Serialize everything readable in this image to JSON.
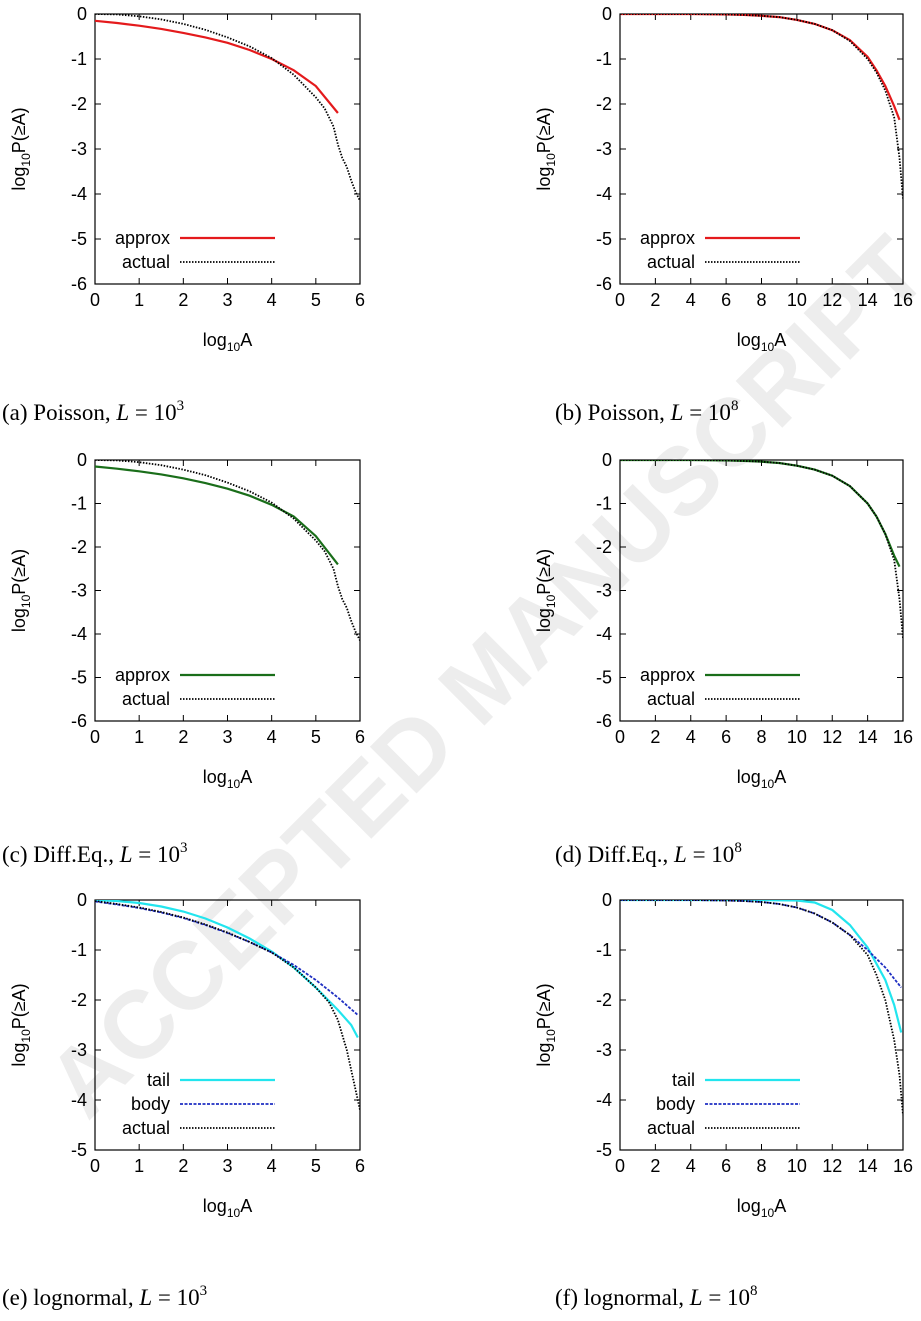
{
  "watermark": "ACCEPTED MANUSCRIPT",
  "chart_data": [
    {
      "type": "line",
      "caption": "(a) Poisson, L = 10^3",
      "xlabel": "log10A",
      "ylabel": "log10P(≥A)",
      "xlim": [
        0,
        6
      ],
      "ylim": [
        -6,
        0
      ],
      "xticks": [
        0,
        1,
        2,
        3,
        4,
        5,
        6
      ],
      "yticks": [
        0,
        -1,
        -2,
        -3,
        -4,
        -5,
        -6
      ],
      "legend_position": "bottom-left",
      "series": [
        {
          "name": "approx",
          "color": "#e41a1c",
          "dash": "solid",
          "x": [
            0,
            0.5,
            1,
            1.5,
            2,
            2.5,
            3,
            3.5,
            4,
            4.5,
            5,
            5.5
          ],
          "y": [
            -0.15,
            -0.2,
            -0.26,
            -0.33,
            -0.42,
            -0.52,
            -0.64,
            -0.8,
            -1.0,
            -1.25,
            -1.6,
            -2.2
          ]
        },
        {
          "name": "actual",
          "color": "#000000",
          "dash": "dotted",
          "x": [
            0,
            0.5,
            1,
            1.5,
            2,
            2.5,
            3,
            3.5,
            4,
            4.5,
            5,
            5.2,
            5.4,
            5.5,
            5.6,
            5.7,
            5.8,
            5.9,
            6
          ],
          "y": [
            0,
            -0.01,
            -0.05,
            -0.12,
            -0.22,
            -0.35,
            -0.52,
            -0.72,
            -0.98,
            -1.35,
            -1.85,
            -2.1,
            -2.5,
            -2.9,
            -3.2,
            -3.4,
            -3.7,
            -3.95,
            -4.15
          ]
        }
      ]
    },
    {
      "type": "line",
      "caption": "(b) Poisson, L = 10^8",
      "xlabel": "log10A",
      "ylabel": "log10P(≥A)",
      "xlim": [
        0,
        16
      ],
      "ylim": [
        -6,
        0
      ],
      "xticks": [
        0,
        2,
        4,
        6,
        8,
        10,
        12,
        14,
        16
      ],
      "yticks": [
        0,
        -1,
        -2,
        -3,
        -4,
        -5,
        -6
      ],
      "legend_position": "bottom-left",
      "series": [
        {
          "name": "approx",
          "color": "#e41a1c",
          "dash": "solid",
          "x": [
            0,
            2,
            4,
            6,
            7,
            8,
            9,
            10,
            11,
            12,
            13,
            14,
            14.5,
            15,
            15.5,
            15.8
          ],
          "y": [
            0,
            0,
            0,
            -0.01,
            -0.02,
            -0.04,
            -0.07,
            -0.13,
            -0.22,
            -0.36,
            -0.58,
            -0.95,
            -1.25,
            -1.6,
            -2.05,
            -2.35
          ]
        },
        {
          "name": "actual",
          "color": "#000000",
          "dash": "dotted",
          "x": [
            0,
            2,
            4,
            6,
            7,
            8,
            9,
            10,
            11,
            12,
            13,
            14,
            14.5,
            15,
            15.5,
            15.8,
            16
          ],
          "y": [
            0,
            0,
            0,
            -0.01,
            -0.02,
            -0.04,
            -0.07,
            -0.13,
            -0.22,
            -0.36,
            -0.6,
            -1.0,
            -1.3,
            -1.7,
            -2.3,
            -3.2,
            -4.1
          ]
        }
      ]
    },
    {
      "type": "line",
      "caption": "(c) Diff.Eq., L = 10^3",
      "xlabel": "log10A",
      "ylabel": "log10P(≥A)",
      "xlim": [
        0,
        6
      ],
      "ylim": [
        -6,
        0
      ],
      "xticks": [
        0,
        1,
        2,
        3,
        4,
        5,
        6
      ],
      "yticks": [
        0,
        -1,
        -2,
        -3,
        -4,
        -5,
        -6
      ],
      "legend_position": "bottom-left",
      "series": [
        {
          "name": "approx",
          "color": "#1a6e1a",
          "dash": "solid",
          "x": [
            0,
            0.5,
            1,
            1.5,
            2,
            2.5,
            3,
            3.5,
            4,
            4.5,
            5,
            5.5
          ],
          "y": [
            -0.15,
            -0.2,
            -0.26,
            -0.33,
            -0.42,
            -0.53,
            -0.66,
            -0.82,
            -1.03,
            -1.3,
            -1.75,
            -2.4
          ]
        },
        {
          "name": "actual",
          "color": "#000000",
          "dash": "dotted",
          "x": [
            0,
            0.5,
            1,
            1.5,
            2,
            2.5,
            3,
            3.5,
            4,
            4.5,
            5,
            5.2,
            5.4,
            5.5,
            5.6,
            5.7,
            5.8,
            5.9,
            6
          ],
          "y": [
            0,
            -0.01,
            -0.05,
            -0.12,
            -0.22,
            -0.35,
            -0.52,
            -0.72,
            -0.98,
            -1.35,
            -1.85,
            -2.1,
            -2.5,
            -2.9,
            -3.2,
            -3.4,
            -3.7,
            -3.95,
            -4.15
          ]
        }
      ]
    },
    {
      "type": "line",
      "caption": "(d) Diff.Eq., L = 10^8",
      "xlabel": "log10A",
      "ylabel": "log10P(≥A)",
      "xlim": [
        0,
        16
      ],
      "ylim": [
        -6,
        0
      ],
      "xticks": [
        0,
        2,
        4,
        6,
        8,
        10,
        12,
        14,
        16
      ],
      "yticks": [
        0,
        -1,
        -2,
        -3,
        -4,
        -5,
        -6
      ],
      "legend_position": "bottom-left",
      "series": [
        {
          "name": "approx",
          "color": "#1a6e1a",
          "dash": "solid",
          "x": [
            0,
            2,
            4,
            6,
            7,
            8,
            9,
            10,
            11,
            12,
            13,
            14,
            14.5,
            15,
            15.5,
            15.8
          ],
          "y": [
            0,
            0,
            0,
            -0.01,
            -0.02,
            -0.04,
            -0.07,
            -0.13,
            -0.22,
            -0.36,
            -0.6,
            -1.0,
            -1.3,
            -1.7,
            -2.2,
            -2.45
          ]
        },
        {
          "name": "actual",
          "color": "#000000",
          "dash": "dotted",
          "x": [
            0,
            2,
            4,
            6,
            7,
            8,
            9,
            10,
            11,
            12,
            13,
            14,
            14.5,
            15,
            15.5,
            15.8,
            16
          ],
          "y": [
            0,
            0,
            0,
            -0.01,
            -0.02,
            -0.04,
            -0.07,
            -0.13,
            -0.22,
            -0.36,
            -0.6,
            -1.0,
            -1.3,
            -1.7,
            -2.3,
            -3.2,
            -4.1
          ]
        }
      ]
    },
    {
      "type": "line",
      "caption": "(e) lognormal, L = 10^3",
      "xlabel": "log10A",
      "ylabel": "log10P(≥A)",
      "xlim": [
        0,
        6
      ],
      "ylim": [
        -5,
        0
      ],
      "xticks": [
        0,
        1,
        2,
        3,
        4,
        5,
        6
      ],
      "yticks": [
        0,
        -1,
        -2,
        -3,
        -4,
        -5
      ],
      "legend_position": "bottom-left",
      "series": [
        {
          "name": "tail",
          "color": "#22e5ee",
          "dash": "solid",
          "x": [
            0,
            0.5,
            1,
            1.5,
            2,
            2.5,
            3,
            3.5,
            4,
            4.5,
            5,
            5.5,
            5.8,
            5.95
          ],
          "y": [
            0,
            -0.02,
            -0.06,
            -0.13,
            -0.23,
            -0.37,
            -0.55,
            -0.77,
            -1.03,
            -1.35,
            -1.75,
            -2.2,
            -2.5,
            -2.75
          ]
        },
        {
          "name": "body",
          "color": "#1f2fc2",
          "dash": "dashed",
          "x": [
            0,
            0.5,
            1,
            1.5,
            2,
            2.5,
            3,
            3.5,
            4,
            4.5,
            5,
            5.5,
            5.95
          ],
          "y": [
            -0.03,
            -0.09,
            -0.16,
            -0.25,
            -0.36,
            -0.5,
            -0.66,
            -0.84,
            -1.05,
            -1.3,
            -1.6,
            -1.95,
            -2.3
          ]
        },
        {
          "name": "actual",
          "color": "#000000",
          "dash": "dotted",
          "x": [
            0,
            0.5,
            1,
            1.5,
            2,
            2.5,
            3,
            3.5,
            4,
            4.5,
            5,
            5.3,
            5.5,
            5.6,
            5.7,
            5.8,
            5.9,
            6
          ],
          "y": [
            -0.02,
            -0.08,
            -0.15,
            -0.24,
            -0.35,
            -0.49,
            -0.65,
            -0.84,
            -1.05,
            -1.35,
            -1.75,
            -2.05,
            -2.4,
            -2.7,
            -3.0,
            -3.4,
            -3.8,
            -4.2
          ]
        }
      ]
    },
    {
      "type": "line",
      "caption": "(f) lognormal, L = 10^8",
      "xlabel": "log10A",
      "ylabel": "log10P(≥A)",
      "xlim": [
        0,
        16
      ],
      "ylim": [
        -5,
        0
      ],
      "xticks": [
        0,
        2,
        4,
        6,
        8,
        10,
        12,
        14,
        16
      ],
      "yticks": [
        0,
        -1,
        -2,
        -3,
        -4,
        -5
      ],
      "legend_position": "bottom-left",
      "series": [
        {
          "name": "tail",
          "color": "#22e5ee",
          "dash": "solid",
          "x": [
            0,
            2,
            4,
            6,
            8,
            10,
            11,
            12,
            13,
            14,
            15,
            15.5,
            15.9
          ],
          "y": [
            0,
            0,
            0,
            0,
            0,
            -0.01,
            -0.05,
            -0.2,
            -0.5,
            -0.95,
            -1.6,
            -2.1,
            -2.65
          ]
        },
        {
          "name": "body",
          "color": "#1f2fc2",
          "dash": "dashed",
          "x": [
            0,
            2,
            4,
            6,
            7,
            8,
            9,
            10,
            11,
            12,
            13,
            14,
            15,
            15.9
          ],
          "y": [
            0,
            0,
            0,
            -0.01,
            -0.02,
            -0.04,
            -0.08,
            -0.15,
            -0.27,
            -0.45,
            -0.7,
            -1.0,
            -1.35,
            -1.75
          ]
        },
        {
          "name": "actual",
          "color": "#000000",
          "dash": "dotted",
          "x": [
            0,
            2,
            4,
            6,
            7,
            8,
            9,
            10,
            11,
            12,
            13,
            14,
            14.5,
            15,
            15.5,
            15.8,
            16
          ],
          "y": [
            0,
            0,
            0,
            -0.01,
            -0.02,
            -0.04,
            -0.08,
            -0.15,
            -0.27,
            -0.45,
            -0.7,
            -1.1,
            -1.5,
            -2.0,
            -2.8,
            -3.5,
            -4.3
          ]
        }
      ]
    }
  ]
}
